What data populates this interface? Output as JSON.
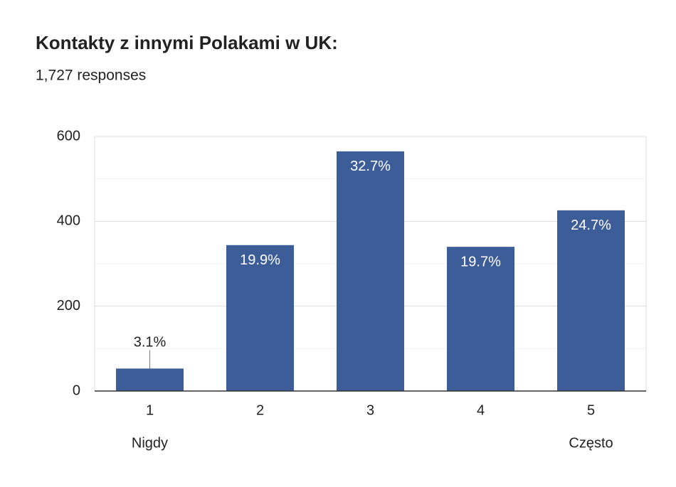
{
  "chart_data": {
    "type": "bar",
    "title": "Kontakty z innymi Polakami w UK:",
    "subtitle": "1,727 responses",
    "categories": [
      "1",
      "2",
      "3",
      "4",
      "5"
    ],
    "sub_labels": [
      "Nigdy",
      null,
      null,
      null,
      "Często"
    ],
    "values": [
      53,
      344,
      565,
      340,
      426
    ],
    "data_labels": [
      "3.1%",
      "19.9%",
      "32.7%",
      "19.7%",
      "24.7%"
    ],
    "color": "#3d5d99",
    "ylim": [
      0,
      600
    ],
    "yticks": [
      0,
      200,
      400,
      600
    ],
    "minor_yticks": [
      100,
      300,
      500
    ],
    "grid": true
  }
}
